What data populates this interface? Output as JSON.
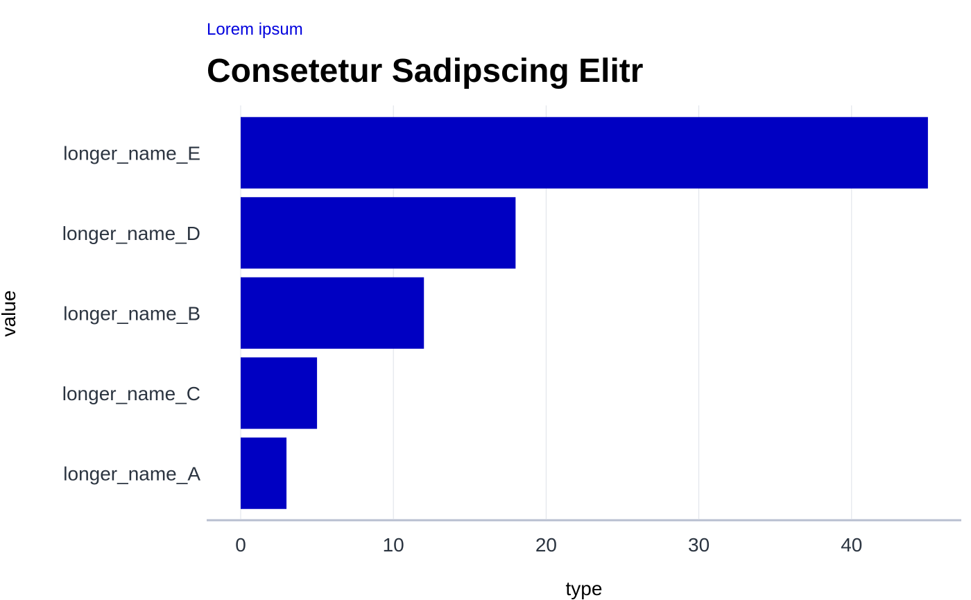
{
  "chart_data": {
    "type": "bar",
    "orientation": "horizontal",
    "subtitle": "Lorem ipsum",
    "title": "Consetetur Sadipscing Elitr",
    "xlabel": "type",
    "ylabel": "value",
    "categories": [
      "longer_name_E",
      "longer_name_D",
      "longer_name_B",
      "longer_name_C",
      "longer_name_A"
    ],
    "values": [
      45,
      18,
      12,
      5,
      3
    ],
    "xlim": [
      0,
      47
    ],
    "xticks": [
      0,
      10,
      20,
      30,
      40
    ],
    "grid": "vertical",
    "legend": "none"
  },
  "colors": {
    "bar": "#0000c2",
    "subtitle": "#0000dd",
    "title": "#000000",
    "label": "#2b3440",
    "grid": "#dde1e8",
    "axis": "#b8bfd0"
  }
}
